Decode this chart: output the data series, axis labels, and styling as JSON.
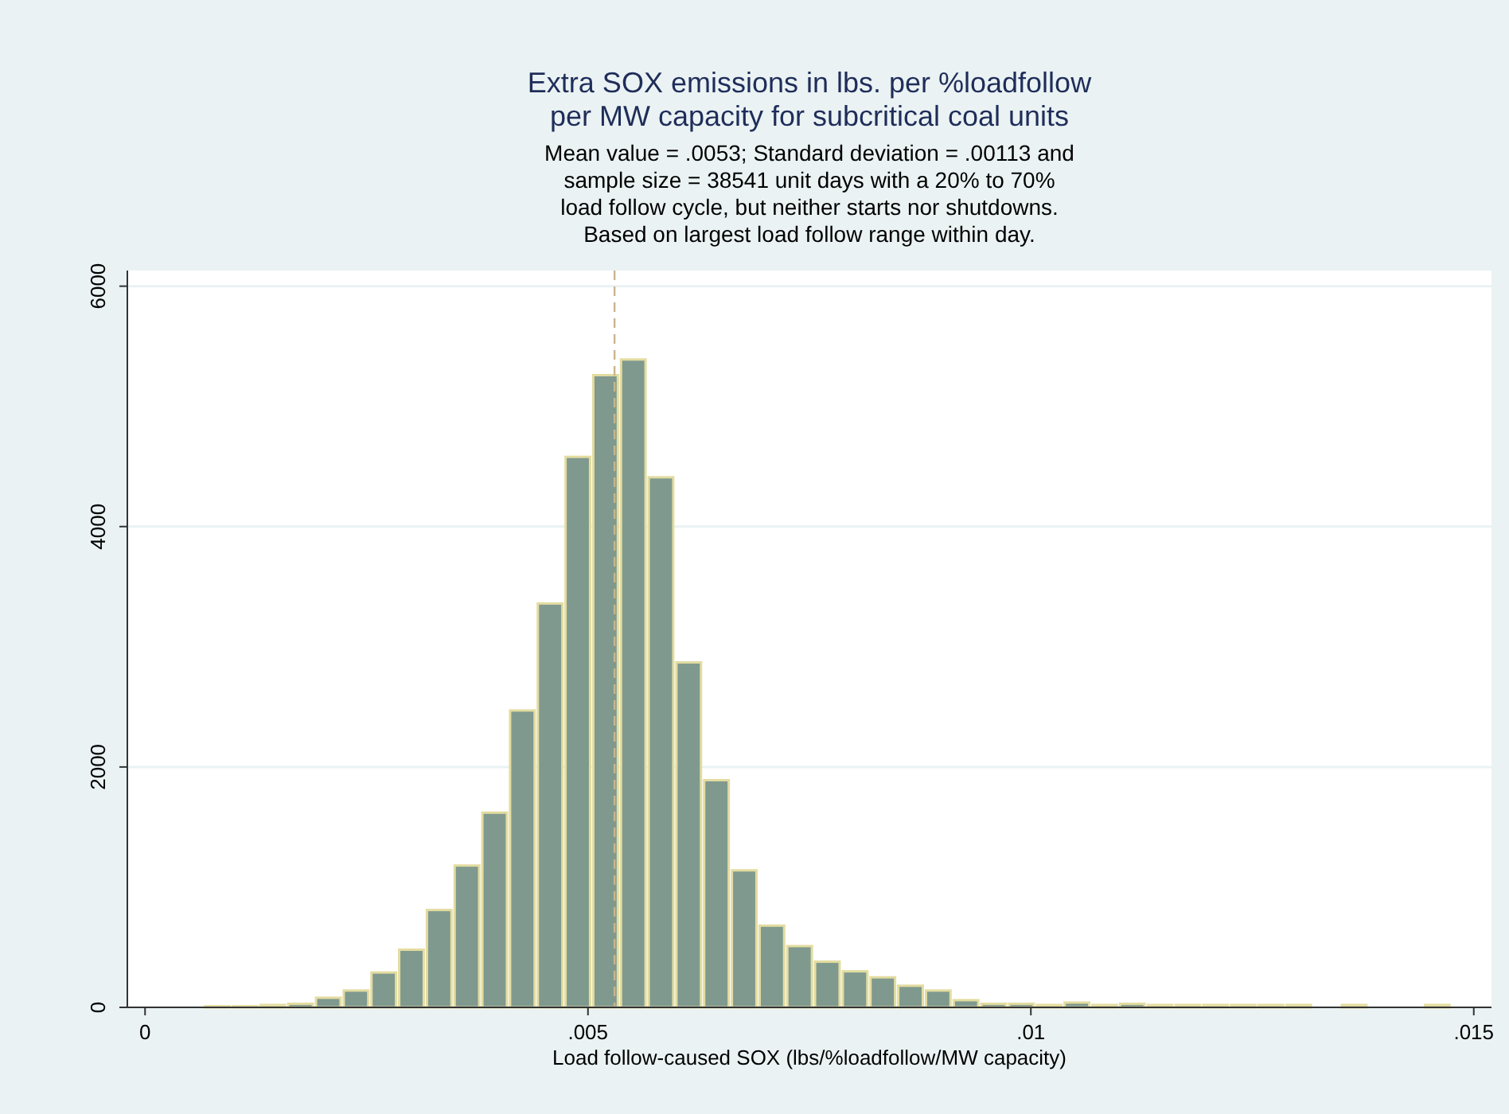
{
  "chart_data": {
    "type": "histogram",
    "title": "Extra SOX emissions in lbs. per %loadfollow\nper MW capacity for subcritical coal units",
    "subtitle": "Mean value = .0053; Standard deviation = .00113 and\nsample size = 38541 unit days with a 20% to 70%\nload follow cycle, but neither starts nor shutdowns.\nBased on largest load follow range within day.",
    "xlabel": "Load follow-caused SOX (lbs/%loadfollow/MW capacity)",
    "bins": [
      0.00066,
      0.000973,
      0.001286,
      0.001599,
      0.001912,
      0.002225,
      0.002538,
      0.002851,
      0.003164,
      0.003477,
      0.00379,
      0.004103,
      0.004416,
      0.004729,
      0.005042,
      0.005355,
      0.005668,
      0.005981,
      0.006294,
      0.006607,
      0.00692,
      0.007233,
      0.007546,
      0.007859,
      0.008172,
      0.008485,
      0.008798,
      0.009111,
      0.009424,
      0.009737,
      0.01005,
      0.010363,
      0.010676,
      0.010989,
      0.011302,
      0.011615,
      0.011928,
      0.012241,
      0.012554,
      0.012867,
      0.01318,
      0.013493,
      0.013806,
      0.014119,
      0.014432,
      0.014745
    ],
    "values": [
      10,
      10,
      20,
      30,
      80,
      140,
      290,
      480,
      810,
      1180,
      1620,
      2470,
      3360,
      4580,
      5260,
      5390,
      4410,
      2870,
      1890,
      1140,
      680,
      510,
      380,
      300,
      250,
      180,
      140,
      60,
      30,
      30,
      20,
      40,
      20,
      30,
      20,
      20,
      20,
      20,
      20,
      20,
      0,
      20,
      0,
      0,
      20
    ],
    "color": "#7f998f",
    "xlim": [
      -0.0002,
      0.0152
    ],
    "xticks": [
      {
        "value": 0,
        "label": "0"
      },
      {
        "value": 0.005,
        "label": ".005"
      },
      {
        "value": 0.01,
        "label": ".01"
      },
      {
        "value": 0.015,
        "label": ".015"
      }
    ],
    "ylim": [
      0,
      6130
    ],
    "yticks": [
      0,
      2000,
      4000,
      6000
    ],
    "grid": "y",
    "ref_lines": [
      {
        "axis": "x",
        "value": 0.0053,
        "color": "#c8b68a",
        "line_style": "dashed"
      }
    ]
  }
}
